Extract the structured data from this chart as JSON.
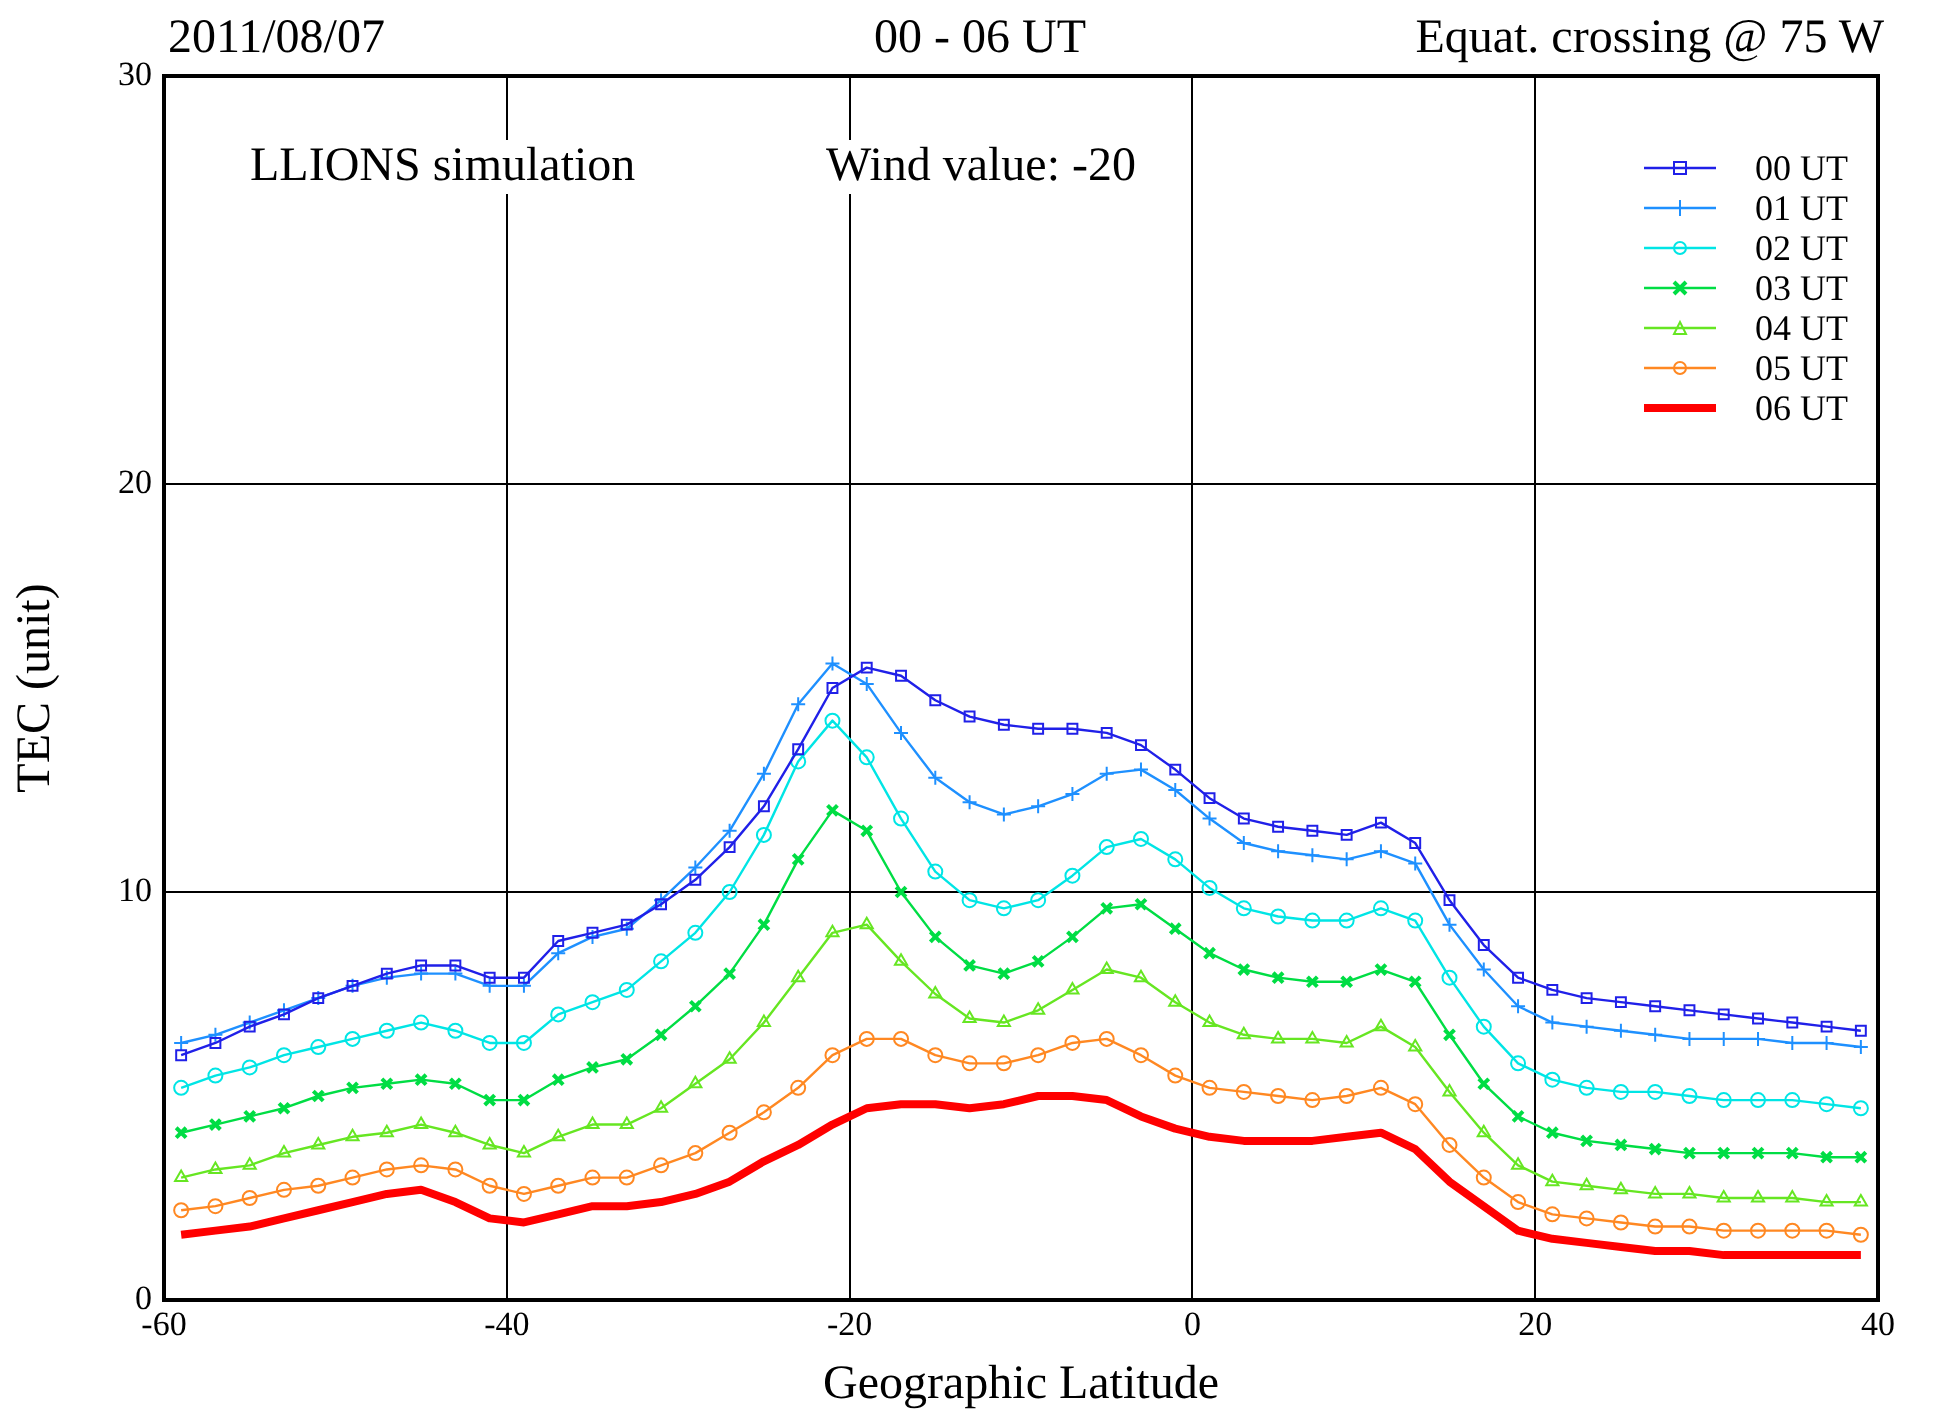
{
  "chart_data": {
    "type": "line",
    "title": "00 - 06 UT",
    "xlabel": "Geographic Latitude",
    "ylabel": "TEC (unit)",
    "annotations": [
      "2011/08/07",
      "Equat. crossing @ 75 W",
      "LLIONS simulation",
      "Wind value:  -20"
    ],
    "x": [
      -59,
      -57,
      -55,
      -53,
      -51,
      -49,
      -47,
      -45,
      -43,
      -41,
      -39,
      -37,
      -35,
      -33,
      -31,
      -29,
      -27,
      -25,
      -23,
      -21,
      -19,
      -17,
      -15,
      -13,
      -11,
      -9,
      -7,
      -5,
      -3,
      -1,
      1,
      3,
      5,
      7,
      9,
      11,
      13,
      15,
      17,
      19,
      21,
      23,
      25,
      27,
      29,
      31,
      33,
      35,
      37,
      39
    ],
    "series": [
      {
        "name": "00 UT",
        "color": "#2020e8",
        "marker": "square",
        "values": [
          6.0,
          6.3,
          6.7,
          7.0,
          7.4,
          7.7,
          8.0,
          8.2,
          8.2,
          7.9,
          7.9,
          8.8,
          9.0,
          9.2,
          9.7,
          10.3,
          11.1,
          12.1,
          13.5,
          15.0,
          15.5,
          15.3,
          14.7,
          14.3,
          14.1,
          14.0,
          14.0,
          13.9,
          13.6,
          13.0,
          12.3,
          11.8,
          11.6,
          11.5,
          11.4,
          11.7,
          11.2,
          9.8,
          8.7,
          7.9,
          7.6,
          7.4,
          7.3,
          7.2,
          7.1,
          7.0,
          6.9,
          6.8,
          6.7,
          6.6
        ]
      },
      {
        "name": "01 UT",
        "color": "#1e90ff",
        "marker": "cross",
        "values": [
          6.3,
          6.5,
          6.8,
          7.1,
          7.4,
          7.7,
          7.9,
          8.0,
          8.0,
          7.7,
          7.7,
          8.5,
          8.9,
          9.1,
          9.8,
          10.6,
          11.5,
          12.9,
          14.6,
          15.6,
          15.1,
          13.9,
          12.8,
          12.2,
          11.9,
          12.1,
          12.4,
          12.9,
          13.0,
          12.5,
          11.8,
          11.2,
          11.0,
          10.9,
          10.8,
          11.0,
          10.7,
          9.2,
          8.1,
          7.2,
          6.8,
          6.7,
          6.6,
          6.5,
          6.4,
          6.4,
          6.4,
          6.3,
          6.3,
          6.2
        ]
      },
      {
        "name": "02 UT",
        "color": "#00e5e5",
        "marker": "circle",
        "values": [
          5.2,
          5.5,
          5.7,
          6.0,
          6.2,
          6.4,
          6.6,
          6.8,
          6.6,
          6.3,
          6.3,
          7.0,
          7.3,
          7.6,
          8.3,
          9.0,
          10.0,
          11.4,
          13.2,
          14.2,
          13.3,
          11.8,
          10.5,
          9.8,
          9.6,
          9.8,
          10.4,
          11.1,
          11.3,
          10.8,
          10.1,
          9.6,
          9.4,
          9.3,
          9.3,
          9.6,
          9.3,
          7.9,
          6.7,
          5.8,
          5.4,
          5.2,
          5.1,
          5.1,
          5.0,
          4.9,
          4.9,
          4.9,
          4.8,
          4.7
        ]
      },
      {
        "name": "03 UT",
        "color": "#00dd44",
        "marker": "crossRot",
        "values": [
          4.1,
          4.3,
          4.5,
          4.7,
          5.0,
          5.2,
          5.3,
          5.4,
          5.3,
          4.9,
          4.9,
          5.4,
          5.7,
          5.9,
          6.5,
          7.2,
          8.0,
          9.2,
          10.8,
          12.0,
          11.5,
          10.0,
          8.9,
          8.2,
          8.0,
          8.3,
          8.9,
          9.6,
          9.7,
          9.1,
          8.5,
          8.1,
          7.9,
          7.8,
          7.8,
          8.1,
          7.8,
          6.5,
          5.3,
          4.5,
          4.1,
          3.9,
          3.8,
          3.7,
          3.6,
          3.6,
          3.6,
          3.6,
          3.5,
          3.5
        ]
      },
      {
        "name": "04 UT",
        "color": "#66e622",
        "marker": "triangle",
        "values": [
          3.0,
          3.2,
          3.3,
          3.6,
          3.8,
          4.0,
          4.1,
          4.3,
          4.1,
          3.8,
          3.6,
          4.0,
          4.3,
          4.3,
          4.7,
          5.3,
          5.9,
          6.8,
          7.9,
          9.0,
          9.2,
          8.3,
          7.5,
          6.9,
          6.8,
          7.1,
          7.6,
          8.1,
          7.9,
          7.3,
          6.8,
          6.5,
          6.4,
          6.4,
          6.3,
          6.7,
          6.2,
          5.1,
          4.1,
          3.3,
          2.9,
          2.8,
          2.7,
          2.6,
          2.6,
          2.5,
          2.5,
          2.5,
          2.4,
          2.4
        ]
      },
      {
        "name": "05 UT",
        "color": "#ff8822",
        "marker": "circle",
        "values": [
          2.2,
          2.3,
          2.5,
          2.7,
          2.8,
          3.0,
          3.2,
          3.3,
          3.2,
          2.8,
          2.6,
          2.8,
          3.0,
          3.0,
          3.3,
          3.6,
          4.1,
          4.6,
          5.2,
          6.0,
          6.4,
          6.4,
          6.0,
          5.8,
          5.8,
          6.0,
          6.3,
          6.4,
          6.0,
          5.5,
          5.2,
          5.1,
          5.0,
          4.9,
          5.0,
          5.2,
          4.8,
          3.8,
          3.0,
          2.4,
          2.1,
          2.0,
          1.9,
          1.8,
          1.8,
          1.7,
          1.7,
          1.7,
          1.7,
          1.6
        ]
      },
      {
        "name": "06 UT",
        "color": "#ff0000",
        "marker": "none",
        "values": [
          1.6,
          1.7,
          1.8,
          2.0,
          2.2,
          2.4,
          2.6,
          2.7,
          2.4,
          2.0,
          1.9,
          2.1,
          2.3,
          2.3,
          2.4,
          2.6,
          2.9,
          3.4,
          3.8,
          4.3,
          4.7,
          4.8,
          4.8,
          4.7,
          4.8,
          5.0,
          5.0,
          4.9,
          4.5,
          4.2,
          4.0,
          3.9,
          3.9,
          3.9,
          4.0,
          4.1,
          3.7,
          2.9,
          2.3,
          1.7,
          1.5,
          1.4,
          1.3,
          1.2,
          1.2,
          1.1,
          1.1,
          1.1,
          1.1,
          1.1
        ]
      }
    ],
    "xlim": [
      -60,
      40
    ],
    "xticks": [
      -60,
      -40,
      -20,
      0,
      20,
      40
    ],
    "ylim": [
      0,
      30
    ],
    "yticks": [
      0,
      10,
      20,
      30
    ],
    "grid": true,
    "legend": "top right",
    "line_style": "solid"
  }
}
